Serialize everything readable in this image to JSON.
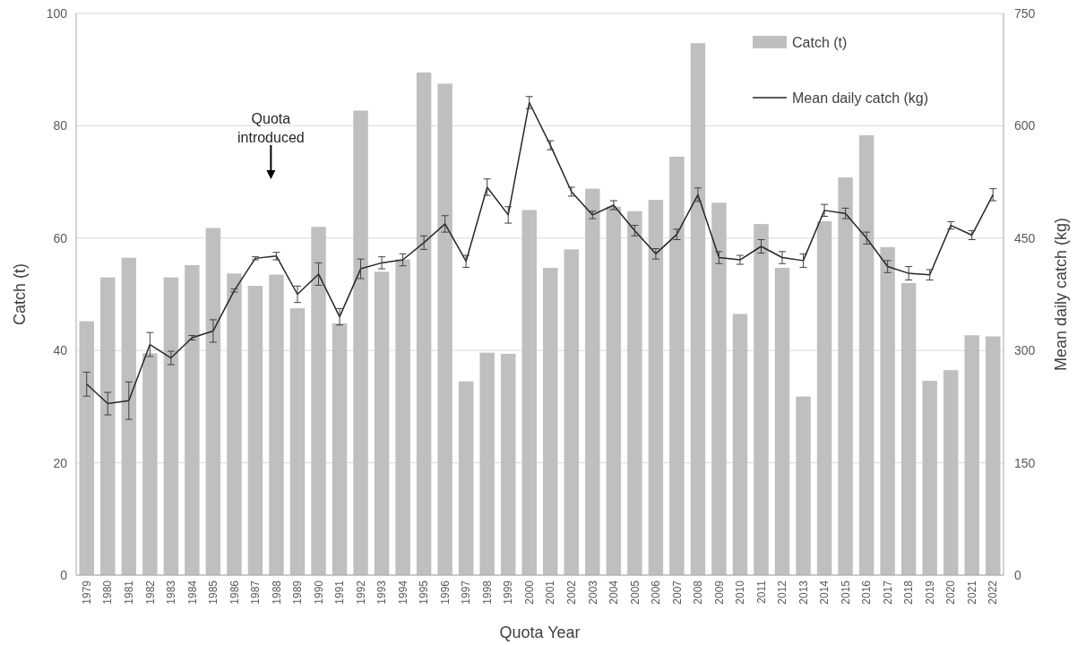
{
  "chart_data": {
    "type": "bar",
    "xlabel": "Quota Year",
    "ylabel": "Catch (t)",
    "y2label": "Mean daily catch (kg)",
    "categories": [
      "1979",
      "1980",
      "1981",
      "1982",
      "1983",
      "1984",
      "1985",
      "1986",
      "1987",
      "1988",
      "1989",
      "1990",
      "1991",
      "1992",
      "1993",
      "1994",
      "1995",
      "1996",
      "1997",
      "1998",
      "1999",
      "2000",
      "2001",
      "2002",
      "2003",
      "2004",
      "2005",
      "2006",
      "2007",
      "2008",
      "2009",
      "2010",
      "2011",
      "2012",
      "2013",
      "2014",
      "2015",
      "2016",
      "2017",
      "2018",
      "2019",
      "2020",
      "2021",
      "2022"
    ],
    "series": [
      {
        "name": "Catch (t)",
        "color": "#bfbfbf",
        "values": [
          45.2,
          53,
          56.5,
          39.5,
          53,
          55.2,
          61.8,
          53.7,
          51.5,
          53.5,
          47.5,
          62,
          44.8,
          82.7,
          54,
          56.2,
          89.5,
          87.5,
          34.5,
          39.6,
          39.4,
          65,
          54.7,
          58,
          68.8,
          65.6,
          64.8,
          66.8,
          74.5,
          94.7,
          66.3,
          46.5,
          62.5,
          54.7,
          31.8,
          63,
          70.8,
          78.3,
          58.4,
          52,
          34.6,
          36.5,
          42.7,
          42.5
        ]
      },
      {
        "name": "Mean daily catch (kg)",
        "type": "line",
        "axis": "y2",
        "color": "#262626",
        "values": [
          255,
          229,
          233,
          308,
          290,
          317,
          326,
          380,
          423,
          426,
          375,
          402,
          345,
          409,
          417,
          421,
          444,
          469,
          419,
          518,
          481,
          631,
          574,
          512,
          481,
          494,
          460,
          429,
          455,
          508,
          424,
          421,
          439,
          424,
          420,
          487,
          483,
          450,
          412,
          403,
          401,
          467,
          454,
          508
        ],
        "errors": [
          16,
          15,
          25,
          16,
          9,
          3,
          15,
          2,
          2,
          5,
          11,
          15,
          11,
          13,
          8,
          8,
          9,
          11,
          8,
          11,
          11,
          8,
          6,
          6,
          5,
          6,
          7,
          7,
          7,
          9,
          8,
          6,
          9,
          8,
          9,
          8,
          7,
          8,
          8,
          9,
          7,
          5,
          6,
          8
        ]
      }
    ],
    "ylim": [
      0,
      100
    ],
    "yticks": [
      0,
      20,
      40,
      60,
      80,
      100
    ],
    "y2lim": [
      0,
      750
    ],
    "y2ticks": [
      0,
      150,
      300,
      450,
      600,
      750
    ],
    "grid": "y",
    "legend": "top right",
    "marker": "none",
    "line_style": "solid",
    "annotations": [
      "Quota introduced"
    ]
  }
}
